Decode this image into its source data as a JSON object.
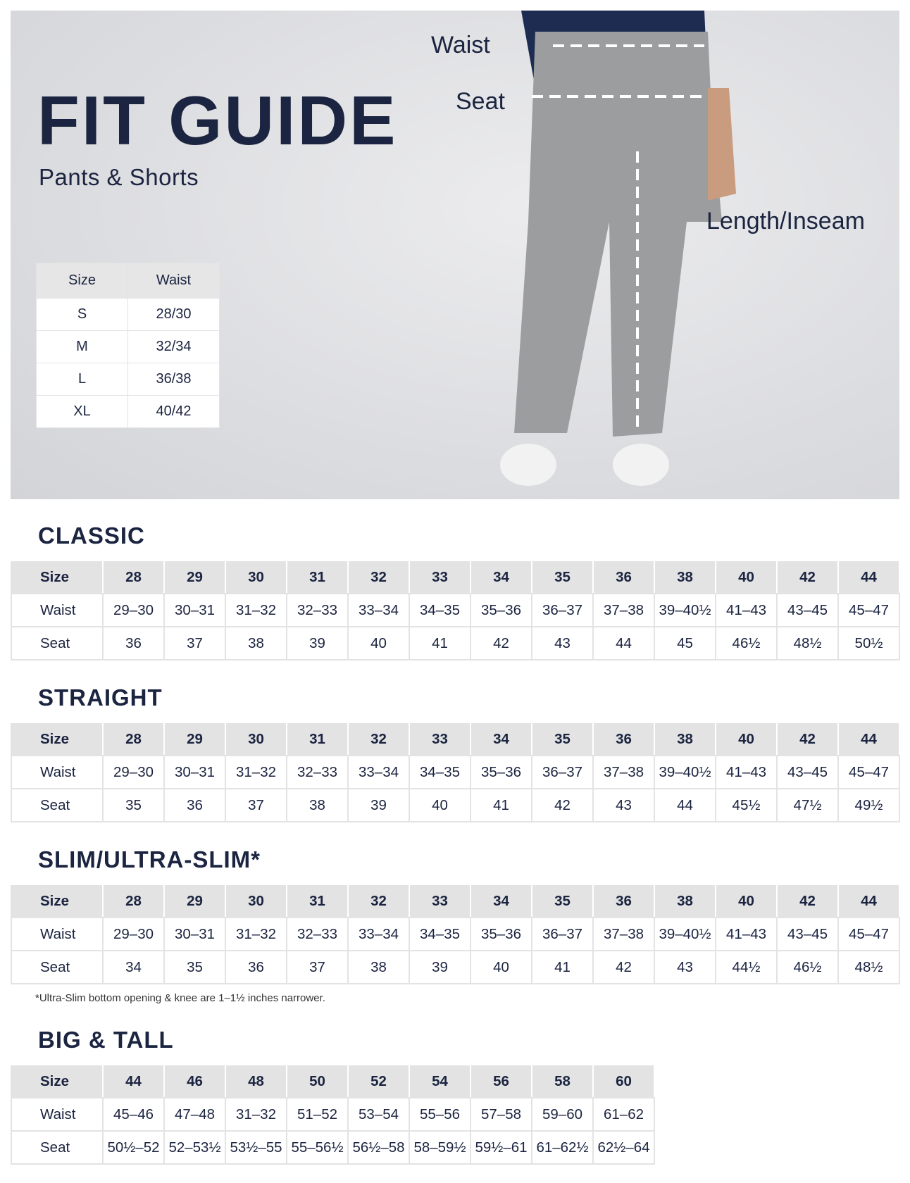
{
  "hero": {
    "title": "FIT GUIDE",
    "subtitle": "Pants & Shorts",
    "labels": {
      "waist": "Waist",
      "seat": "Seat",
      "length": "Length/Inseam"
    },
    "size_table": {
      "headers": [
        "Size",
        "Waist"
      ],
      "rows": [
        [
          "S",
          "28/30"
        ],
        [
          "M",
          "32/34"
        ],
        [
          "L",
          "36/38"
        ],
        [
          "XL",
          "40/42"
        ]
      ]
    }
  },
  "sections": [
    {
      "title": "CLASSIC",
      "rows": [
        [
          "Size",
          "28",
          "29",
          "30",
          "31",
          "32",
          "33",
          "34",
          "35",
          "36",
          "38",
          "40",
          "42",
          "44"
        ],
        [
          "Waist",
          "29–30",
          "30–31",
          "31–32",
          "32–33",
          "33–34",
          "34–35",
          "35–36",
          "36–37",
          "37–38",
          "39–40½",
          "41–43",
          "43–45",
          "45–47"
        ],
        [
          "Seat",
          "36",
          "37",
          "38",
          "39",
          "40",
          "41",
          "42",
          "43",
          "44",
          "45",
          "46½",
          "48½",
          "50½"
        ]
      ]
    },
    {
      "title": "STRAIGHT",
      "rows": [
        [
          "Size",
          "28",
          "29",
          "30",
          "31",
          "32",
          "33",
          "34",
          "35",
          "36",
          "38",
          "40",
          "42",
          "44"
        ],
        [
          "Waist",
          "29–30",
          "30–31",
          "31–32",
          "32–33",
          "33–34",
          "34–35",
          "35–36",
          "36–37",
          "37–38",
          "39–40½",
          "41–43",
          "43–45",
          "45–47"
        ],
        [
          "Seat",
          "35",
          "36",
          "37",
          "38",
          "39",
          "40",
          "41",
          "42",
          "43",
          "44",
          "45½",
          "47½",
          "49½"
        ]
      ]
    },
    {
      "title": "SLIM/ULTRA-SLIM*",
      "rows": [
        [
          "Size",
          "28",
          "29",
          "30",
          "31",
          "32",
          "33",
          "34",
          "35",
          "36",
          "38",
          "40",
          "42",
          "44"
        ],
        [
          "Waist",
          "29–30",
          "30–31",
          "31–32",
          "32–33",
          "33–34",
          "34–35",
          "35–36",
          "36–37",
          "37–38",
          "39–40½",
          "41–43",
          "43–45",
          "45–47"
        ],
        [
          "Seat",
          "34",
          "35",
          "36",
          "37",
          "38",
          "39",
          "40",
          "41",
          "42",
          "43",
          "44½",
          "46½",
          "48½"
        ]
      ]
    },
    {
      "title": "BIG & TALL",
      "rows": [
        [
          "Size",
          "44",
          "46",
          "48",
          "50",
          "52",
          "54",
          "56",
          "58",
          "60"
        ],
        [
          "Waist",
          "45–46",
          "47–48",
          "31–32",
          "51–52",
          "53–54",
          "55–56",
          "57–58",
          "59–60",
          "61–62"
        ],
        [
          "Seat",
          "50½–52",
          "52–53½",
          "53½–55",
          "55–56½",
          "56½–58",
          "58–59½",
          "59½–61",
          "61–62½",
          "62½–64"
        ]
      ]
    }
  ],
  "footnote": "*Ultra-Slim bottom opening & knee are 1–1½ inches narrower.",
  "colors": {
    "navy": "#1b2440",
    "header_gray": "#e3e3e3",
    "hero_bg": "#dcdde0"
  }
}
